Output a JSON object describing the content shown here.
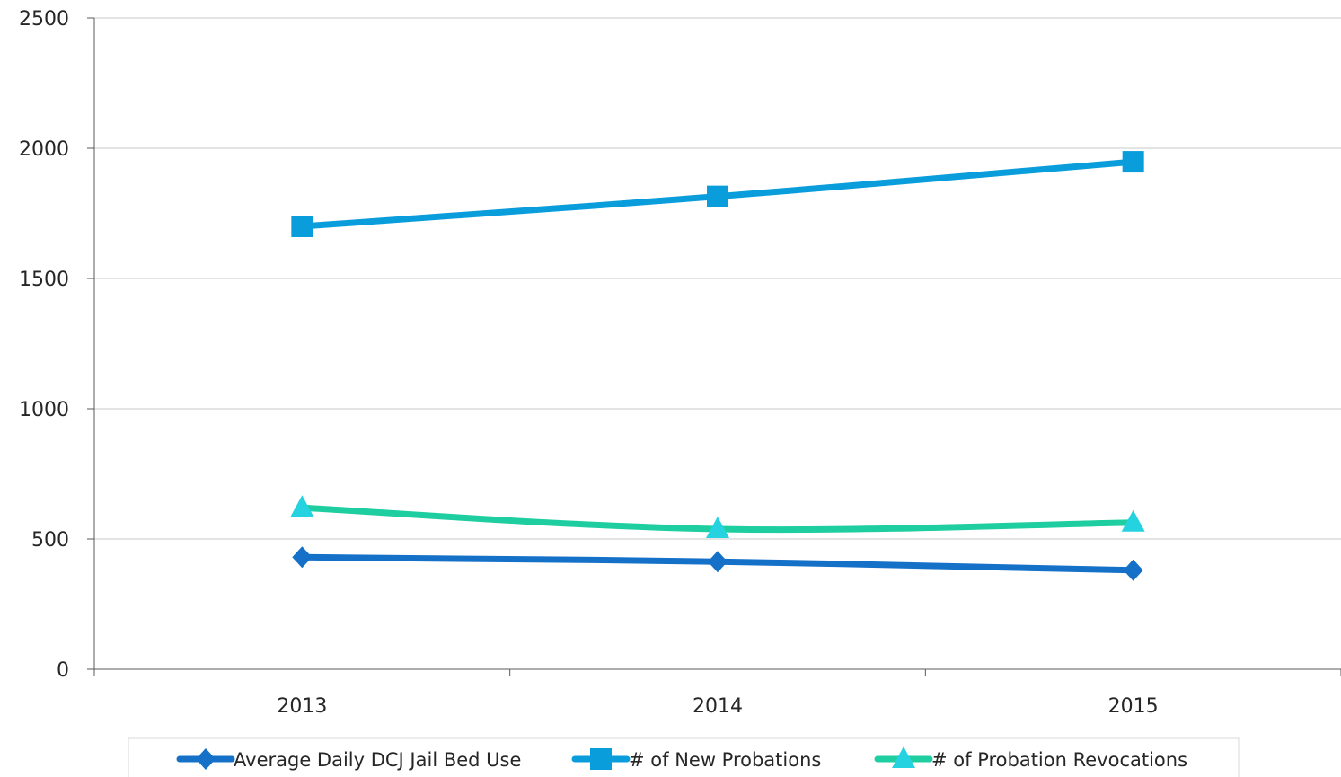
{
  "chart_data": {
    "type": "line",
    "categories": [
      "2013",
      "2014",
      "2015"
    ],
    "ylim": [
      0,
      2500
    ],
    "y_ticks": [
      0,
      500,
      1000,
      1500,
      2000,
      2500
    ],
    "grid": true,
    "legend_position": "bottom",
    "series": [
      {
        "name": "Average Daily DCJ Jail Bed Use",
        "values": [
          430,
          413,
          380
        ],
        "color": "#1570c8",
        "marker": "diamond"
      },
      {
        "name": "# of New Probations",
        "values": [
          1700,
          1815,
          1948
        ],
        "color": "#0a9ddb",
        "marker": "square"
      },
      {
        "name": "# of Probation Revocations",
        "values": [
          620,
          538,
          563
        ],
        "color": "#1fcea0",
        "marker_color": "#25d3e0",
        "marker": "triangle"
      }
    ]
  }
}
